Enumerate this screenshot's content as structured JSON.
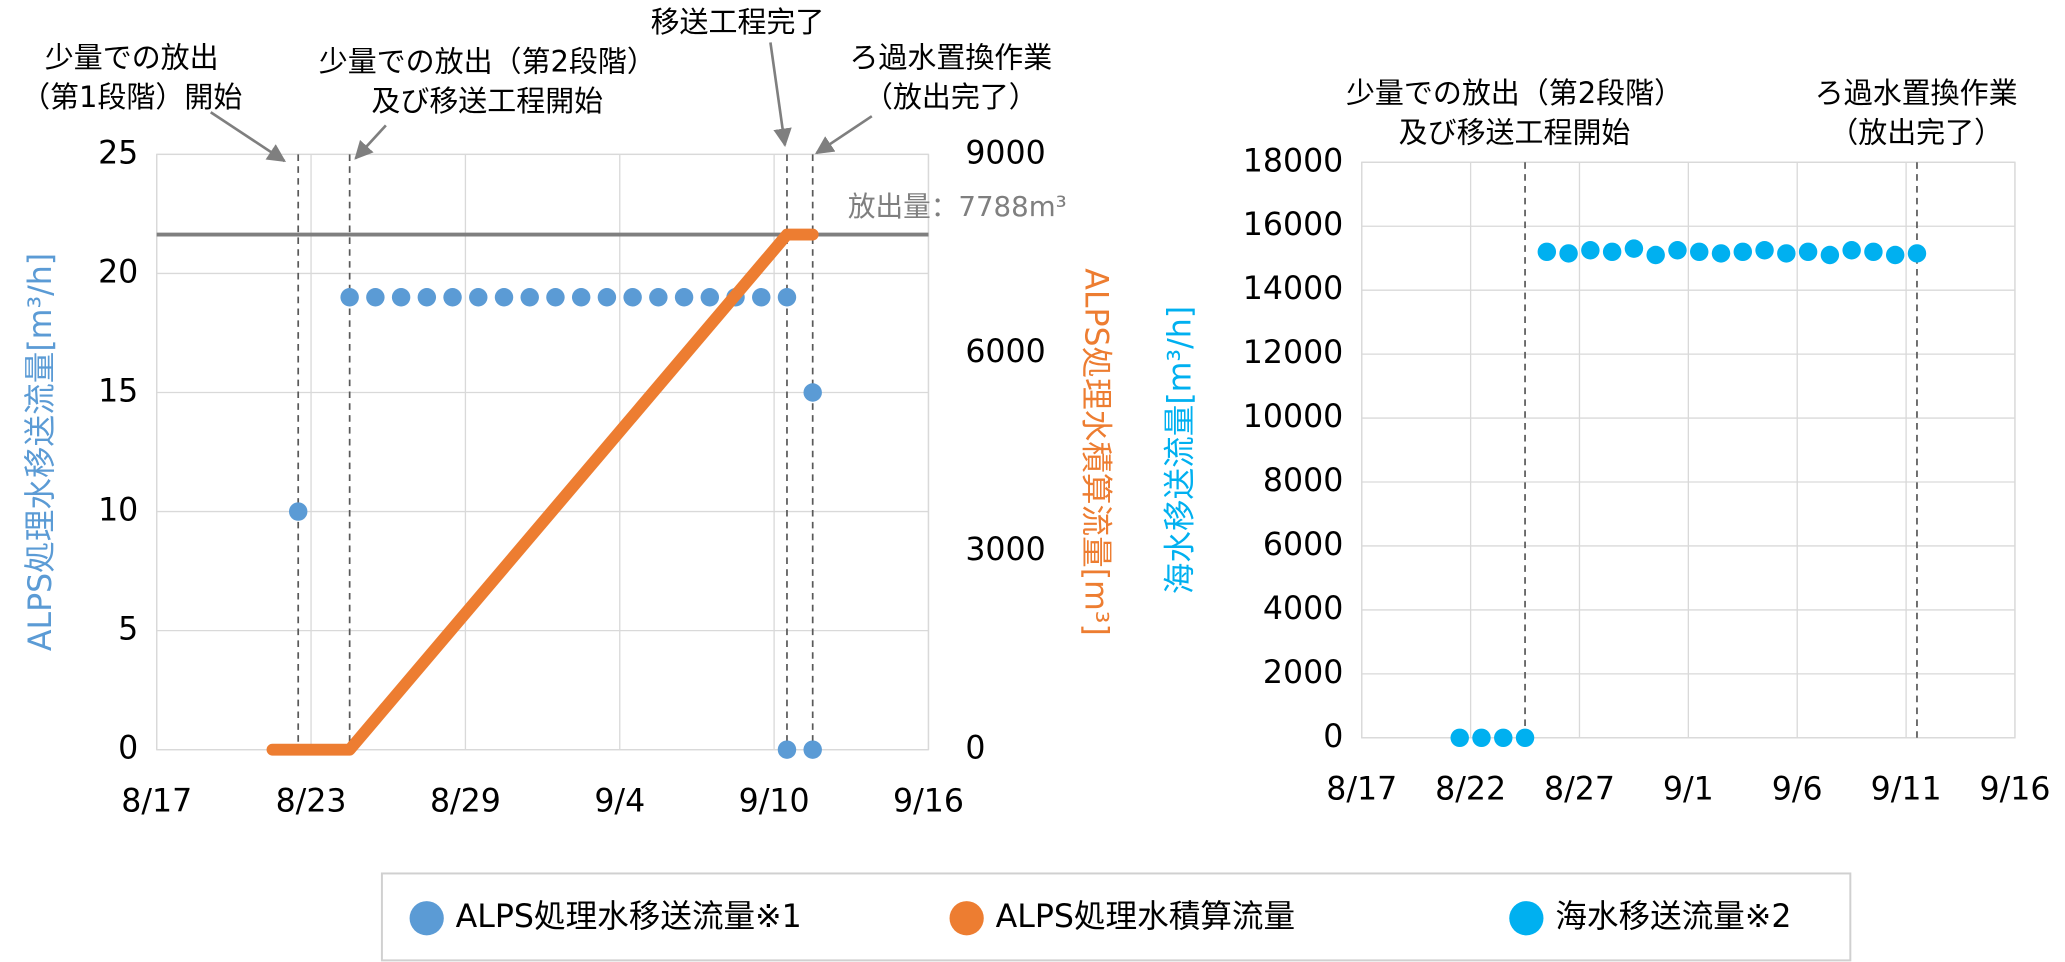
{
  "chart_data": [
    {
      "type": "scatter",
      "xlim": [
        "8/17",
        "9/16"
      ],
      "xticks": [
        "8/17",
        "8/23",
        "8/29",
        "9/4",
        "9/10",
        "9/16"
      ],
      "ylim": [
        0,
        25
      ],
      "yticks": [
        0,
        5,
        10,
        15,
        20,
        25
      ],
      "y2lim": [
        0,
        9000
      ],
      "y2ticks": [
        0,
        3000,
        6000,
        9000
      ],
      "ylabel": "ALPS処理水移送流量[m³/h]",
      "ylabel_color": "#5b9bd5",
      "y2label": "ALPS処理水積算流量[m³]",
      "y2label_color": "#ed7d31",
      "grid": true,
      "series": [
        {
          "name": "ALPS処理水移送流量※1",
          "color": "#5b9bd5",
          "mark": "dot",
          "x": [
            "8/22",
            "8/24",
            "8/25",
            "8/26",
            "8/27",
            "8/28",
            "8/29",
            "8/30",
            "8/31",
            "9/1",
            "9/2",
            "9/3",
            "9/4",
            "9/5",
            "9/6",
            "9/7",
            "9/8",
            "9/9",
            "9/10",
            "9/10",
            "9/11",
            "9/11"
          ],
          "values": [
            10,
            19,
            19,
            19,
            19,
            19,
            19,
            19,
            19,
            19,
            19,
            19,
            19,
            19,
            19,
            19,
            19,
            19,
            19,
            0,
            0,
            15
          ]
        },
        {
          "name": "ALPS処理水積算流量",
          "color": "#ed7d31",
          "mark": "line",
          "axis": "y2",
          "x": [
            "8/21",
            "8/24",
            "9/10",
            "9/11"
          ],
          "values": [
            0,
            0,
            7788,
            7788
          ]
        }
      ],
      "reference_line": {
        "value": 7788,
        "axis": "y2",
        "color": "#7f7f7f",
        "label": "放出量：7788m³"
      },
      "annotations": [
        {
          "x": "8/22",
          "lines": [
            "少量での放出",
            "（第1段階）開始"
          ]
        },
        {
          "x": "8/24",
          "lines": [
            "少量での放出（第2段階）",
            "及び移送工程開始"
          ]
        },
        {
          "x": "9/10",
          "lines": [
            "移送工程完了"
          ]
        },
        {
          "x": "9/11",
          "lines": [
            "ろ過水置換作業",
            "（放出完了）"
          ]
        }
      ]
    },
    {
      "type": "scatter",
      "xlim": [
        "8/17",
        "9/16"
      ],
      "xticks": [
        "8/17",
        "8/22",
        "8/27",
        "9/1",
        "9/6",
        "9/11",
        "9/16"
      ],
      "ylim": [
        0,
        18000
      ],
      "yticks": [
        0,
        2000,
        4000,
        6000,
        8000,
        10000,
        12000,
        14000,
        16000,
        18000
      ],
      "ylabel": "海水移送流量[m³/h]",
      "ylabel_color": "#00b0f0",
      "grid": true,
      "series": [
        {
          "name": "海水移送流量※2",
          "color": "#00b0f0",
          "mark": "dot",
          "x": [
            "8/21",
            "8/22",
            "8/23",
            "8/24",
            "8/25",
            "8/26",
            "8/27",
            "8/28",
            "8/29",
            "8/30",
            "8/31",
            "9/1",
            "9/2",
            "9/3",
            "9/4",
            "9/5",
            "9/6",
            "9/7",
            "9/8",
            "9/9",
            "9/10",
            "9/11"
          ],
          "values": [
            0,
            0,
            0,
            0,
            15200,
            15150,
            15250,
            15200,
            15300,
            15100,
            15250,
            15200,
            15150,
            15200,
            15250,
            15150,
            15200,
            15100,
            15250,
            15200,
            15100,
            15150
          ]
        }
      ],
      "annotations": [
        {
          "x": "8/24",
          "lines": [
            "少量での放出（第2段階）",
            "及び移送工程開始"
          ]
        },
        {
          "x": "9/11",
          "lines": [
            "ろ過水置換作業",
            "（放出完了）"
          ]
        }
      ]
    }
  ]
}
